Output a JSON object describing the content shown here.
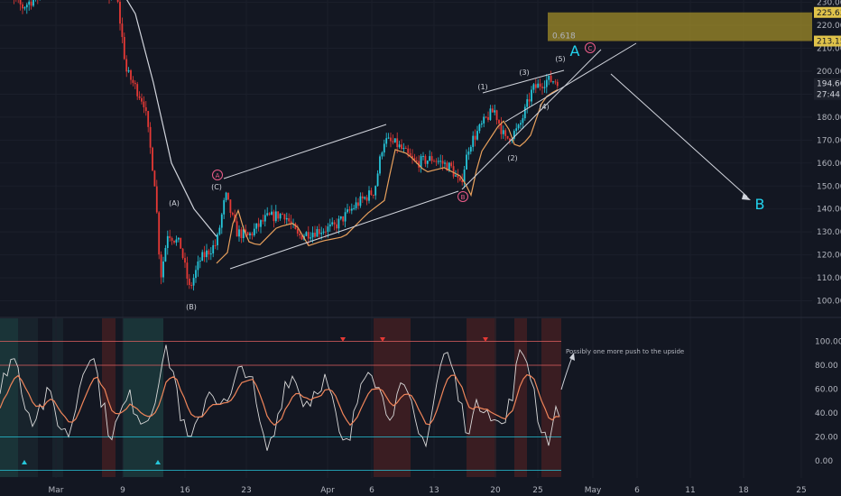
{
  "chart_data": {
    "type": "line",
    "price_axis": {
      "ticks": [
        230,
        220,
        210,
        200,
        190,
        180,
        170,
        160,
        150,
        140,
        130,
        120,
        110,
        100
      ],
      "tick_labels": [
        "230.00",
        "220.00",
        "210.00",
        "200.00",
        "190.00",
        "180.00",
        "170.00",
        "160.00",
        "150.00",
        "140.00",
        "130.00",
        "120.00",
        "110.00",
        "100.00"
      ]
    },
    "osc_axis": {
      "ticks": [
        100,
        80,
        60,
        40,
        20,
        0
      ],
      "tick_labels": [
        "100.00",
        "80.00",
        "60.00",
        "40.00",
        "20.00",
        "0.00"
      ]
    },
    "x_axis": {
      "labels": [
        "Mar",
        "9",
        "16",
        "23",
        "Apr",
        "6",
        "13",
        "20",
        "25",
        "May",
        "6",
        "11",
        "18",
        "25"
      ]
    },
    "price_badges": {
      "upper": "225.63",
      "lower": "213.15",
      "last": "194.60",
      "countdown": "27:44"
    },
    "fib_label": "0.618",
    "wave_labels": [
      "(A)",
      "(B)",
      "(C)",
      "(1)",
      "(2)",
      "(3)",
      "(4)",
      "(5)",
      "A",
      "B"
    ],
    "circled_labels": [
      "A",
      "B",
      "C"
    ],
    "annotation": "Possibly one more push to the upside",
    "colors": {
      "bg": "#131722",
      "up": "#26c6da",
      "down": "#e53935",
      "ma": "#e8a05c",
      "ma_slow": "#d1d4dc",
      "zone": "#a08c28",
      "osc_fast": "#d9d9d9",
      "osc_slow": "#f0855a"
    }
  }
}
